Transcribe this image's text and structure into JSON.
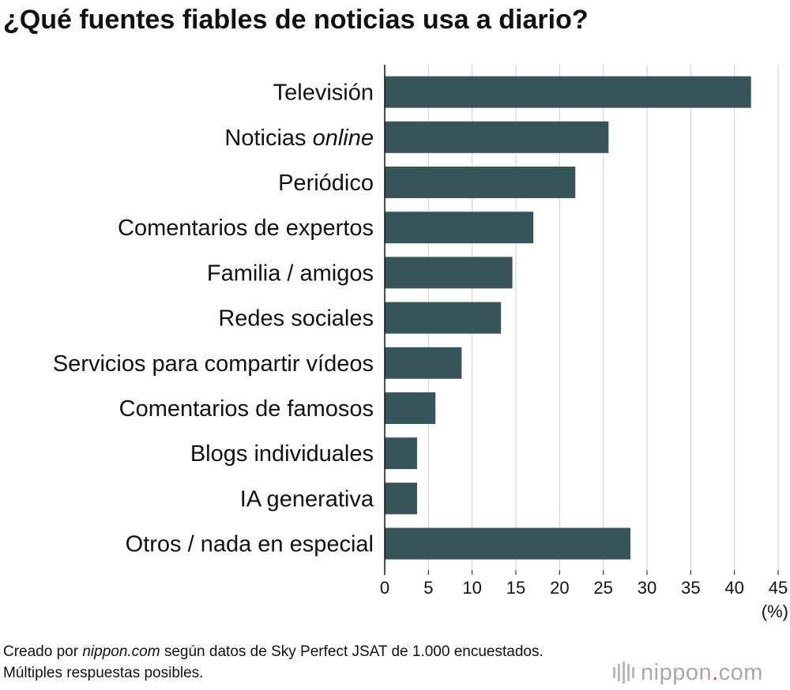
{
  "title": "¿Qué fuentes fiables de noticias usa a diario?",
  "chart_data": {
    "type": "bar",
    "orientation": "horizontal",
    "title": "¿Qué fuentes fiables de noticias usa a diario?",
    "categories": [
      "Televisión",
      "Noticias online",
      "Periódico",
      "Comentarios de expertos",
      "Familia / amigos",
      "Redes sociales",
      "Servicios para compartir vídeos",
      "Comentarios de famosos",
      "Blogs individuales",
      "IA generativa",
      "Otros / nada en especial"
    ],
    "values": [
      41.9,
      25.6,
      21.8,
      17.0,
      14.6,
      13.3,
      8.8,
      5.8,
      3.7,
      3.7,
      28.1
    ],
    "xlim": [
      0,
      45
    ],
    "xticks": [
      "0",
      "5",
      "10",
      "15",
      "20",
      "25",
      "30",
      "35",
      "40",
      "45"
    ],
    "xlabel": "(%)",
    "ylabel": "",
    "grid": true,
    "bar_color": "#37545a",
    "grid_color": "#cfcfcf"
  },
  "footnote": {
    "prefix": "Creado por ",
    "source": "nippon.com",
    "suffix": " según datos de Sky Perfect JSAT de 1.000 encuestados. Múltiples respuestas posibles."
  },
  "brand": {
    "name": "nippon",
    "dot": ".",
    "suffix": "com"
  }
}
